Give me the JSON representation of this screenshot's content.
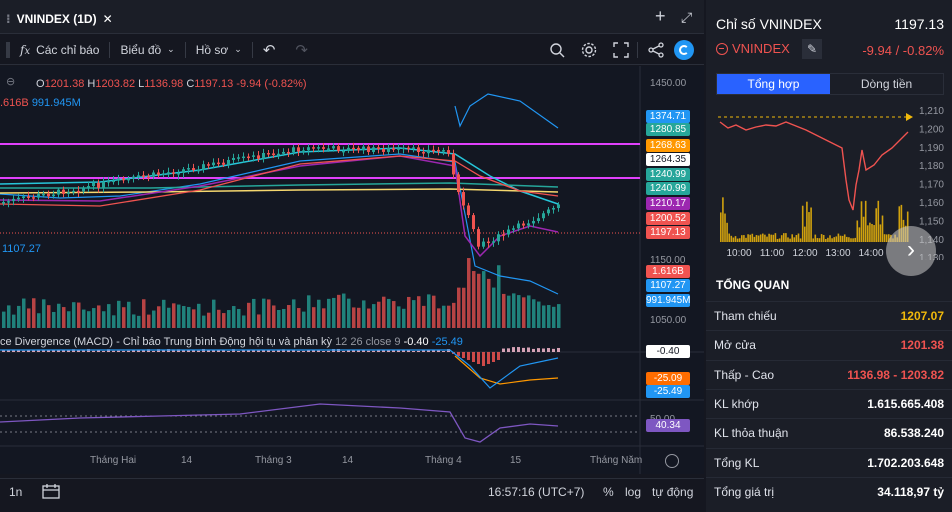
{
  "tab": {
    "title": "VNINDEX (1D)",
    "close": "✕",
    "plus": "+",
    "expand": "⤢"
  },
  "toolbar": {
    "indicators": "Các chỉ báo",
    "chart_type": "Biểu đồ",
    "profile": "Hồ sơ"
  },
  "ohlc": {
    "o_label": "O",
    "o": "1201.38",
    "h_label": "H",
    "h": "1203.82",
    "l_label": "L",
    "l": "1136.98",
    "c_label": "C",
    "c": "1197.13",
    "change": "-9.94 (-0.82%)"
  },
  "vol_legend": {
    "a": ".616B",
    "b": "991.945M"
  },
  "ma_label": "1107.27",
  "macd_legend": {
    "name": "ce Divergence (MACD) - Chỉ báo Trung bình Động hội tụ và phân kỳ",
    "params": "12 26 close 9",
    "v1": "-0.40",
    "v2": "-25.49"
  },
  "price_axis": {
    "top": "1450.00",
    "mid": "1150.00",
    "low": "1050.00",
    "p50": "50.00"
  },
  "price_boxes": [
    {
      "v": "1374.71",
      "c": "#2196f3"
    },
    {
      "v": "1280.85",
      "c": "#26a69a"
    },
    {
      "v": "1268.63",
      "c": "#ff9800"
    },
    {
      "v": "1264.35",
      "c": "#ffffff"
    },
    {
      "v": "1240.99",
      "c": "#26a69a"
    },
    {
      "v": "1240.99",
      "c": "#26a69a"
    },
    {
      "v": "1210.17",
      "c": "#9c27b0"
    },
    {
      "v": "1200.52",
      "c": "#ef5350"
    },
    {
      "v": "1197.13",
      "c": "#ef5350"
    },
    {
      "v": "1.616B",
      "c": "#ef5350"
    },
    {
      "v": "1107.27",
      "c": "#2196f3"
    },
    {
      "v": "991.945M",
      "c": "#2196f3"
    }
  ],
  "macd_boxes": [
    {
      "v": "-0.40",
      "c": "#ffffff"
    },
    {
      "v": "-25.09",
      "c": "#ff6d00"
    },
    {
      "v": "-25.49",
      "c": "#2196f3"
    }
  ],
  "rsi_box": "40.34",
  "time_axis": [
    "Tháng Hai",
    "14",
    "Tháng 3",
    "14",
    "Tháng 4",
    "15",
    "Tháng Năm"
  ],
  "bottom": {
    "interval": "1n",
    "time": "16:57:16 (UTC+7)",
    "pct": "%",
    "log": "log",
    "auto": "tự động"
  },
  "side": {
    "title": "Chỉ số VNINDEX",
    "price": "1197.13",
    "symbol": "VNINDEX",
    "change": "-9.94 / -0.82%",
    "tabs": [
      "Tổng hợp",
      "Dòng tiền"
    ],
    "y_ticks": [
      "1,210",
      "1,200",
      "1,190",
      "1,180",
      "1,170",
      "1,160",
      "1,150",
      "1,140",
      "1,130"
    ],
    "x_ticks": [
      "10:00",
      "11:00",
      "12:00",
      "13:00",
      "14:00"
    ],
    "overview": "TỔNG QUAN",
    "rows": [
      {
        "l": "Tham chiếu",
        "v": "1207.07",
        "c": "#f0b90b"
      },
      {
        "l": "Mở cửa",
        "v": "1201.38",
        "c": "#ef5350"
      },
      {
        "l": "Thấp - Cao",
        "v": "1136.98 - 1203.82",
        "c": "#ef5350"
      },
      {
        "l": "KL khớp",
        "v": "1.615.665.408",
        "c": "#ffffff"
      },
      {
        "l": "KL thỏa thuận",
        "v": "86.538.240",
        "c": "#ffffff"
      },
      {
        "l": "Tổng KL",
        "v": "1.702.203.648",
        "c": "#ffffff"
      },
      {
        "l": "Tổng giá trị",
        "v": "34.118,97 tỷ",
        "c": "#ffffff"
      }
    ]
  },
  "colors": {
    "up": "#26a69a",
    "down": "#ef5350",
    "accent": "#2962ff",
    "ref": "#f0b90b"
  }
}
